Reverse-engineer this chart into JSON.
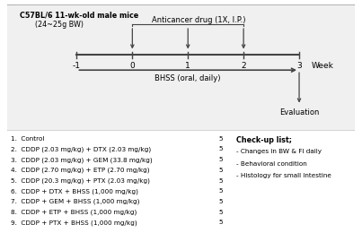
{
  "title_line1": "C57BL/6 11-wk-old male mice",
  "title_line2": "(24~25g BW)",
  "anticancer_label": "Anticancer drug (1X, I.P.)",
  "bhss_label": "BHSS (oral, daily)",
  "week_label": "Week",
  "evaluation_label": "Evaluation",
  "week_ticks": [
    -1,
    0,
    1,
    2,
    3
  ],
  "arrow_weeks": [
    0,
    1,
    2
  ],
  "groups": [
    "1.  Control",
    "2.  CDDP (2.03 mg/kg) + DTX (2.03 mg/kg)",
    "3.  CDDP (2.03 mg/kg) + GEM (33.8 mg/kg)",
    "4.  CDDP (2.70 mg/kg) + ETP (2.70 mg/kg)",
    "5.  CDDP (20.3 mg/kg) + PTX (2.03 mg/kg)",
    "6.  CDDP + DTX + BHSS (1,000 mg/kg)",
    "7.  CDDP + GEM + BHSS (1,000 mg/kg)",
    "8.  CDDP + ETP + BHSS (1,000 mg/kg)",
    "9.  CDDP + PTX + BHSS (1,000 mg/kg)"
  ],
  "group_n": [
    "5",
    "5",
    "5",
    "5",
    "5",
    "5",
    "5",
    "5",
    "5"
  ],
  "checklist_title": "Check-up list;",
  "checklist_items": [
    "- Changes in BW & FI daily",
    "- Behavioral condition",
    "- Histology for small intestine"
  ],
  "bg_color": "#ffffff",
  "text_color": "#000000",
  "timeline_color": "#444444",
  "arrow_color": "#444444",
  "box_edge_color": "#aaaaaa",
  "box_face_color": "#f0f0f0"
}
